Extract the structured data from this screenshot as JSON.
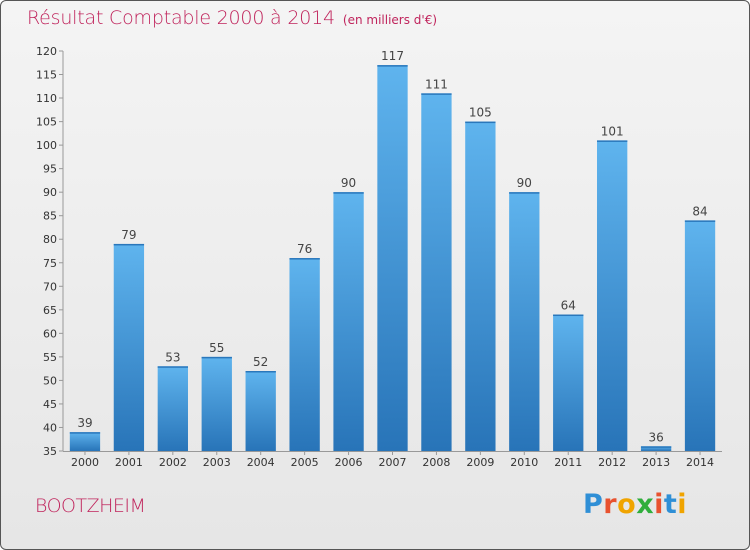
{
  "chart_data": {
    "type": "bar",
    "title": "Résultat Comptable 2000 à 2014",
    "subtitle": "(en milliers d'€)",
    "categories": [
      "2000",
      "2001",
      "2002",
      "2003",
      "2004",
      "2005",
      "2006",
      "2007",
      "2008",
      "2009",
      "2010",
      "2011",
      "2012",
      "2013",
      "2014"
    ],
    "values": [
      39,
      79,
      53,
      55,
      52,
      76,
      90,
      117,
      111,
      105,
      90,
      64,
      101,
      36,
      84
    ],
    "data_labels": [
      "39",
      "79",
      "53",
      "55",
      "52",
      "76",
      "90",
      "117",
      "111",
      "105",
      "90",
      "64",
      "101",
      "36",
      "84"
    ],
    "ylim": [
      35,
      120
    ],
    "yticks": [
      35,
      40,
      45,
      50,
      55,
      60,
      65,
      70,
      75,
      80,
      85,
      90,
      95,
      100,
      105,
      110,
      115,
      120
    ],
    "ytick_labels": [
      "35",
      "40",
      "45",
      "50",
      "55",
      "60",
      "65",
      "70",
      "75",
      "80",
      "85",
      "90",
      "95",
      "100",
      "105",
      "110",
      "115",
      "120"
    ],
    "xlabel": "",
    "ylabel": "",
    "grid": false,
    "bar_color": "#3d9ae0"
  },
  "footer": {
    "commune": "BOOTZHEIM",
    "logo_letters": [
      "P",
      "r",
      "o",
      "x",
      "i",
      "t",
      "i"
    ],
    "logo_colors": [
      "#2f8fd6",
      "#e8522f",
      "#f0a400",
      "#2fae3c",
      "#e8522f",
      "#2f8fd6",
      "#f0a400"
    ]
  }
}
